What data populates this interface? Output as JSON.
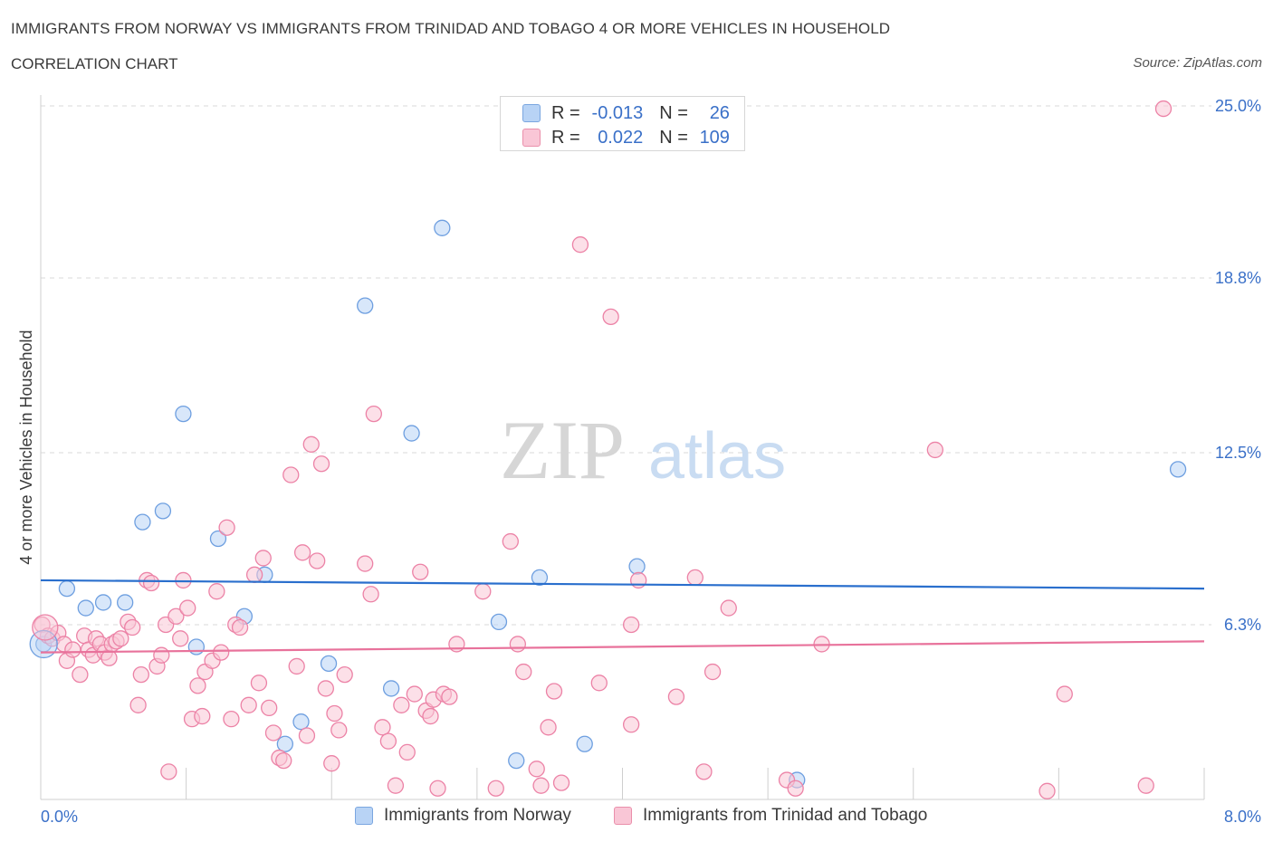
{
  "title": "IMMIGRANTS FROM NORWAY VS IMMIGRANTS FROM TRINIDAD AND TOBAGO 4 OR MORE VEHICLES IN HOUSEHOLD",
  "subtitle": "CORRELATION CHART",
  "source": "Source: ZipAtlas.com",
  "watermark": {
    "zip": "ZIP",
    "atlas": "atlas"
  },
  "colors": {
    "blue": "#6e9fe0",
    "blue_fill": "#b8d3f5",
    "pink": "#ec82a6",
    "pink_fill": "#f9c6d6",
    "blue_line": "#2a6fcd",
    "pink_line": "#e8729b",
    "axis_label": "#3a70c8",
    "grid": "#d9d9d9"
  },
  "stats": {
    "norway": {
      "r_label": "R =",
      "r": "-0.013",
      "n_label": "N =",
      "n": "26"
    },
    "trinidad": {
      "r_label": "R =",
      "r": "0.022",
      "n_label": "N =",
      "n": "109"
    }
  },
  "chart_data": {
    "type": "scatter",
    "ylabel": "4 or more Vehicles in Household",
    "xlim": [
      0,
      8
    ],
    "ylim": [
      0,
      25
    ],
    "x_tick_labels": [
      {
        "value": 0,
        "label": "0.0%"
      },
      {
        "value": 8,
        "label": "8.0%"
      }
    ],
    "y_tick_labels": [
      {
        "value": 6.3,
        "label": "6.3%"
      },
      {
        "value": 12.5,
        "label": "12.5%"
      },
      {
        "value": 18.8,
        "label": "18.8%"
      },
      {
        "value": 25.0,
        "label": "25.0%"
      }
    ],
    "grid": "horizontal dashed",
    "legend": "bottom",
    "series": [
      {
        "name": "Immigrants from Norway",
        "color": "#6e9fe0",
        "trend": {
          "x": [
            0,
            8
          ],
          "y": [
            7.9,
            7.6
          ]
        },
        "points": [
          [
            0.02,
            5.6
          ],
          [
            0.18,
            7.6
          ],
          [
            0.31,
            6.9
          ],
          [
            0.43,
            7.1
          ],
          [
            0.58,
            7.1
          ],
          [
            0.7,
            10.0
          ],
          [
            0.84,
            10.4
          ],
          [
            0.98,
            13.9
          ],
          [
            1.07,
            5.5
          ],
          [
            1.22,
            9.4
          ],
          [
            1.4,
            6.6
          ],
          [
            1.54,
            8.1
          ],
          [
            1.79,
            2.8
          ],
          [
            1.68,
            2.0
          ],
          [
            1.98,
            4.9
          ],
          [
            2.23,
            17.8
          ],
          [
            2.41,
            4.0
          ],
          [
            2.55,
            13.2
          ],
          [
            2.76,
            20.6
          ],
          [
            3.15,
            6.4
          ],
          [
            3.27,
            1.4
          ],
          [
            3.43,
            8.0
          ],
          [
            3.74,
            2.0
          ],
          [
            4.1,
            8.4
          ],
          [
            5.2,
            0.7
          ],
          [
            7.82,
            11.9
          ]
        ]
      },
      {
        "name": "Immigrants from Trinidad and Tobago",
        "color": "#ec82a6",
        "trend": {
          "x": [
            0,
            8
          ],
          "y": [
            5.3,
            5.7
          ]
        },
        "points": [
          [
            0.01,
            6.3
          ],
          [
            0.05,
            5.9
          ],
          [
            0.08,
            5.8
          ],
          [
            0.12,
            6.0
          ],
          [
            0.16,
            5.6
          ],
          [
            0.18,
            5.0
          ],
          [
            0.22,
            5.4
          ],
          [
            0.27,
            4.5
          ],
          [
            0.3,
            5.9
          ],
          [
            0.33,
            5.4
          ],
          [
            0.36,
            5.2
          ],
          [
            0.38,
            5.8
          ],
          [
            0.41,
            5.6
          ],
          [
            0.44,
            5.3
          ],
          [
            0.47,
            5.1
          ],
          [
            0.49,
            5.6
          ],
          [
            0.52,
            5.7
          ],
          [
            0.55,
            5.8
          ],
          [
            0.6,
            6.4
          ],
          [
            0.63,
            6.2
          ],
          [
            0.67,
            3.4
          ],
          [
            0.69,
            4.5
          ],
          [
            0.73,
            7.9
          ],
          [
            0.76,
            7.8
          ],
          [
            0.8,
            4.8
          ],
          [
            0.83,
            5.2
          ],
          [
            0.86,
            6.3
          ],
          [
            0.88,
            1.0
          ],
          [
            0.93,
            6.6
          ],
          [
            0.96,
            5.8
          ],
          [
            0.98,
            7.9
          ],
          [
            1.01,
            6.9
          ],
          [
            1.04,
            2.9
          ],
          [
            1.08,
            4.1
          ],
          [
            1.11,
            3.0
          ],
          [
            1.13,
            4.6
          ],
          [
            1.18,
            5.0
          ],
          [
            1.21,
            7.5
          ],
          [
            1.24,
            5.3
          ],
          [
            1.28,
            9.8
          ],
          [
            1.31,
            2.9
          ],
          [
            1.34,
            6.3
          ],
          [
            1.37,
            6.2
          ],
          [
            1.43,
            3.4
          ],
          [
            1.47,
            8.1
          ],
          [
            1.5,
            4.2
          ],
          [
            1.53,
            8.7
          ],
          [
            1.57,
            3.3
          ],
          [
            1.6,
            2.4
          ],
          [
            1.64,
            1.5
          ],
          [
            1.67,
            1.4
          ],
          [
            1.72,
            11.7
          ],
          [
            1.76,
            4.8
          ],
          [
            1.8,
            8.9
          ],
          [
            1.83,
            2.3
          ],
          [
            1.86,
            12.8
          ],
          [
            1.9,
            8.6
          ],
          [
            1.93,
            12.1
          ],
          [
            1.96,
            4.0
          ],
          [
            2.0,
            1.3
          ],
          [
            2.02,
            3.1
          ],
          [
            2.05,
            2.5
          ],
          [
            2.09,
            4.5
          ],
          [
            2.23,
            8.5
          ],
          [
            2.27,
            7.4
          ],
          [
            2.29,
            13.9
          ],
          [
            2.35,
            2.6
          ],
          [
            2.39,
            2.1
          ],
          [
            2.44,
            0.5
          ],
          [
            2.48,
            3.4
          ],
          [
            2.52,
            1.7
          ],
          [
            2.57,
            3.8
          ],
          [
            2.61,
            8.2
          ],
          [
            2.65,
            3.2
          ],
          [
            2.68,
            3.0
          ],
          [
            2.7,
            3.6
          ],
          [
            2.73,
            0.4
          ],
          [
            2.77,
            3.8
          ],
          [
            2.81,
            3.7
          ],
          [
            2.86,
            5.6
          ],
          [
            3.04,
            7.5
          ],
          [
            3.13,
            0.4
          ],
          [
            3.23,
            9.3
          ],
          [
            3.28,
            5.6
          ],
          [
            3.32,
            4.6
          ],
          [
            3.41,
            1.1
          ],
          [
            3.44,
            0.5
          ],
          [
            3.49,
            2.6
          ],
          [
            3.53,
            3.9
          ],
          [
            3.58,
            0.6
          ],
          [
            3.71,
            20.0
          ],
          [
            3.84,
            4.2
          ],
          [
            3.92,
            17.4
          ],
          [
            4.06,
            2.7
          ],
          [
            4.06,
            6.3
          ],
          [
            4.11,
            7.9
          ],
          [
            4.37,
            3.7
          ],
          [
            4.5,
            8.0
          ],
          [
            4.56,
            1.0
          ],
          [
            4.62,
            4.6
          ],
          [
            4.73,
            6.9
          ],
          [
            5.13,
            0.7
          ],
          [
            5.19,
            0.4
          ],
          [
            5.37,
            5.6
          ],
          [
            6.15,
            12.6
          ],
          [
            6.92,
            0.3
          ],
          [
            7.04,
            3.8
          ],
          [
            7.72,
            24.9
          ],
          [
            7.6,
            0.5
          ]
        ]
      }
    ]
  }
}
